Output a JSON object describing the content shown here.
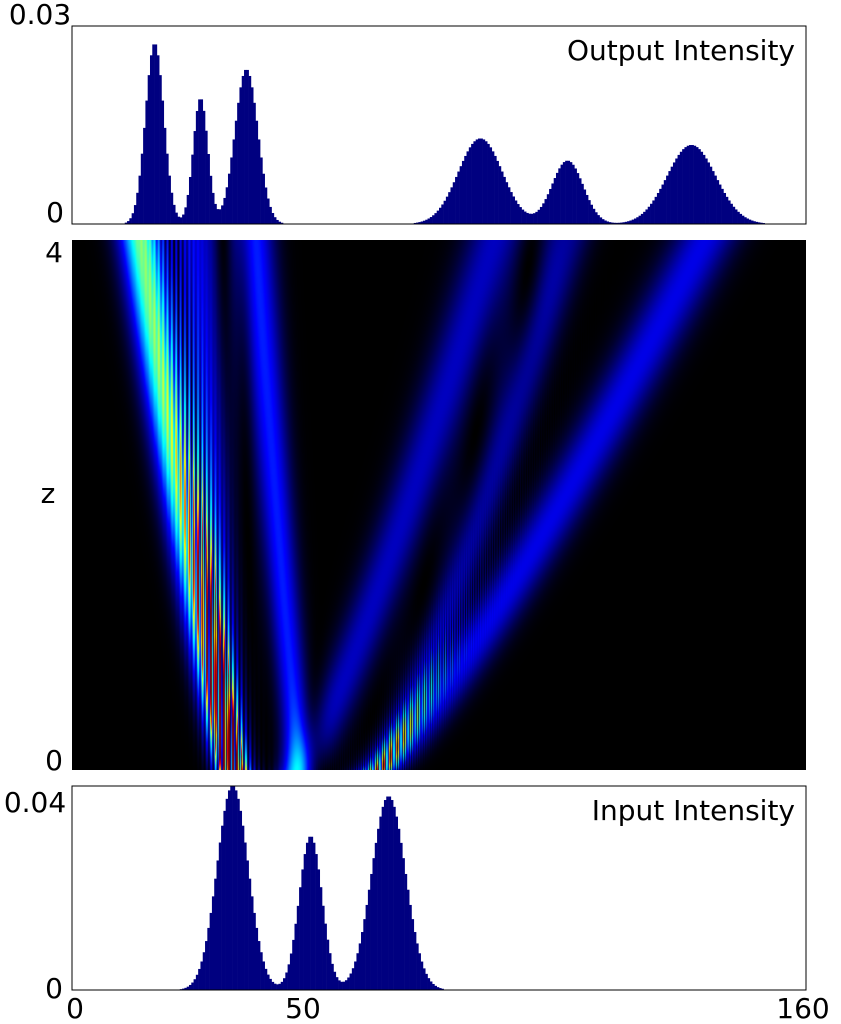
{
  "chart_data": [
    {
      "type": "bar",
      "title": "Output Intensity",
      "xlim": [
        0,
        160
      ],
      "ylim": [
        0,
        0.03
      ],
      "ytick_labels": [
        "0",
        "0.03"
      ],
      "color": "#000080",
      "peaks": [
        {
          "center": 18,
          "height": 0.0277,
          "sigma": 2.0
        },
        {
          "center": 28,
          "height": 0.0193,
          "sigma": 1.6
        },
        {
          "center": 38,
          "height": 0.0237,
          "sigma": 2.5
        },
        {
          "center": 89,
          "height": 0.0131,
          "sigma": 4.8
        },
        {
          "center": 108,
          "height": 0.0097,
          "sigma": 3.4
        },
        {
          "center": 135,
          "height": 0.0121,
          "sigma": 5.3
        }
      ]
    },
    {
      "type": "heatmap",
      "ylabel": "z",
      "xlim": [
        0,
        160
      ],
      "ylim": [
        0,
        4
      ],
      "ytick_labels": [
        "0",
        "4"
      ],
      "colormap": [
        "#000000",
        "#0000ff",
        "#00ffff",
        "#ffff00",
        "#ff0000",
        "#800000"
      ],
      "beams": [
        {
          "x0": 35,
          "x4": 15,
          "width": 3.5,
          "amp": 0.85
        },
        {
          "x0": 35,
          "x4": 27,
          "width": 3.2,
          "amp": 0.55
        },
        {
          "x0": 50,
          "x4": 40,
          "width": 3.0,
          "amp": 0.6
        },
        {
          "x0": 50,
          "x4": 92,
          "width": 4.5,
          "amp": 0.5
        },
        {
          "x0": 67,
          "x4": 108,
          "width": 3.5,
          "amp": 0.45
        },
        {
          "x0": 67,
          "x4": 138,
          "width": 5.0,
          "amp": 0.55
        }
      ]
    },
    {
      "type": "bar",
      "title": "Input Intensity",
      "xlabel": "",
      "xlim": [
        0,
        160
      ],
      "xticks": [
        0,
        50,
        160
      ],
      "xtick_labels": [
        "0",
        "50",
        "160"
      ],
      "ylim": [
        0,
        0.04
      ],
      "ytick_labels": [
        "0",
        "0.04"
      ],
      "color": "#000080",
      "peaks": [
        {
          "center": 35,
          "height": 0.0405,
          "sigma": 3.4
        },
        {
          "center": 52,
          "height": 0.0305,
          "sigma": 2.5
        },
        {
          "center": 69,
          "height": 0.0384,
          "sigma": 3.7
        }
      ]
    }
  ]
}
